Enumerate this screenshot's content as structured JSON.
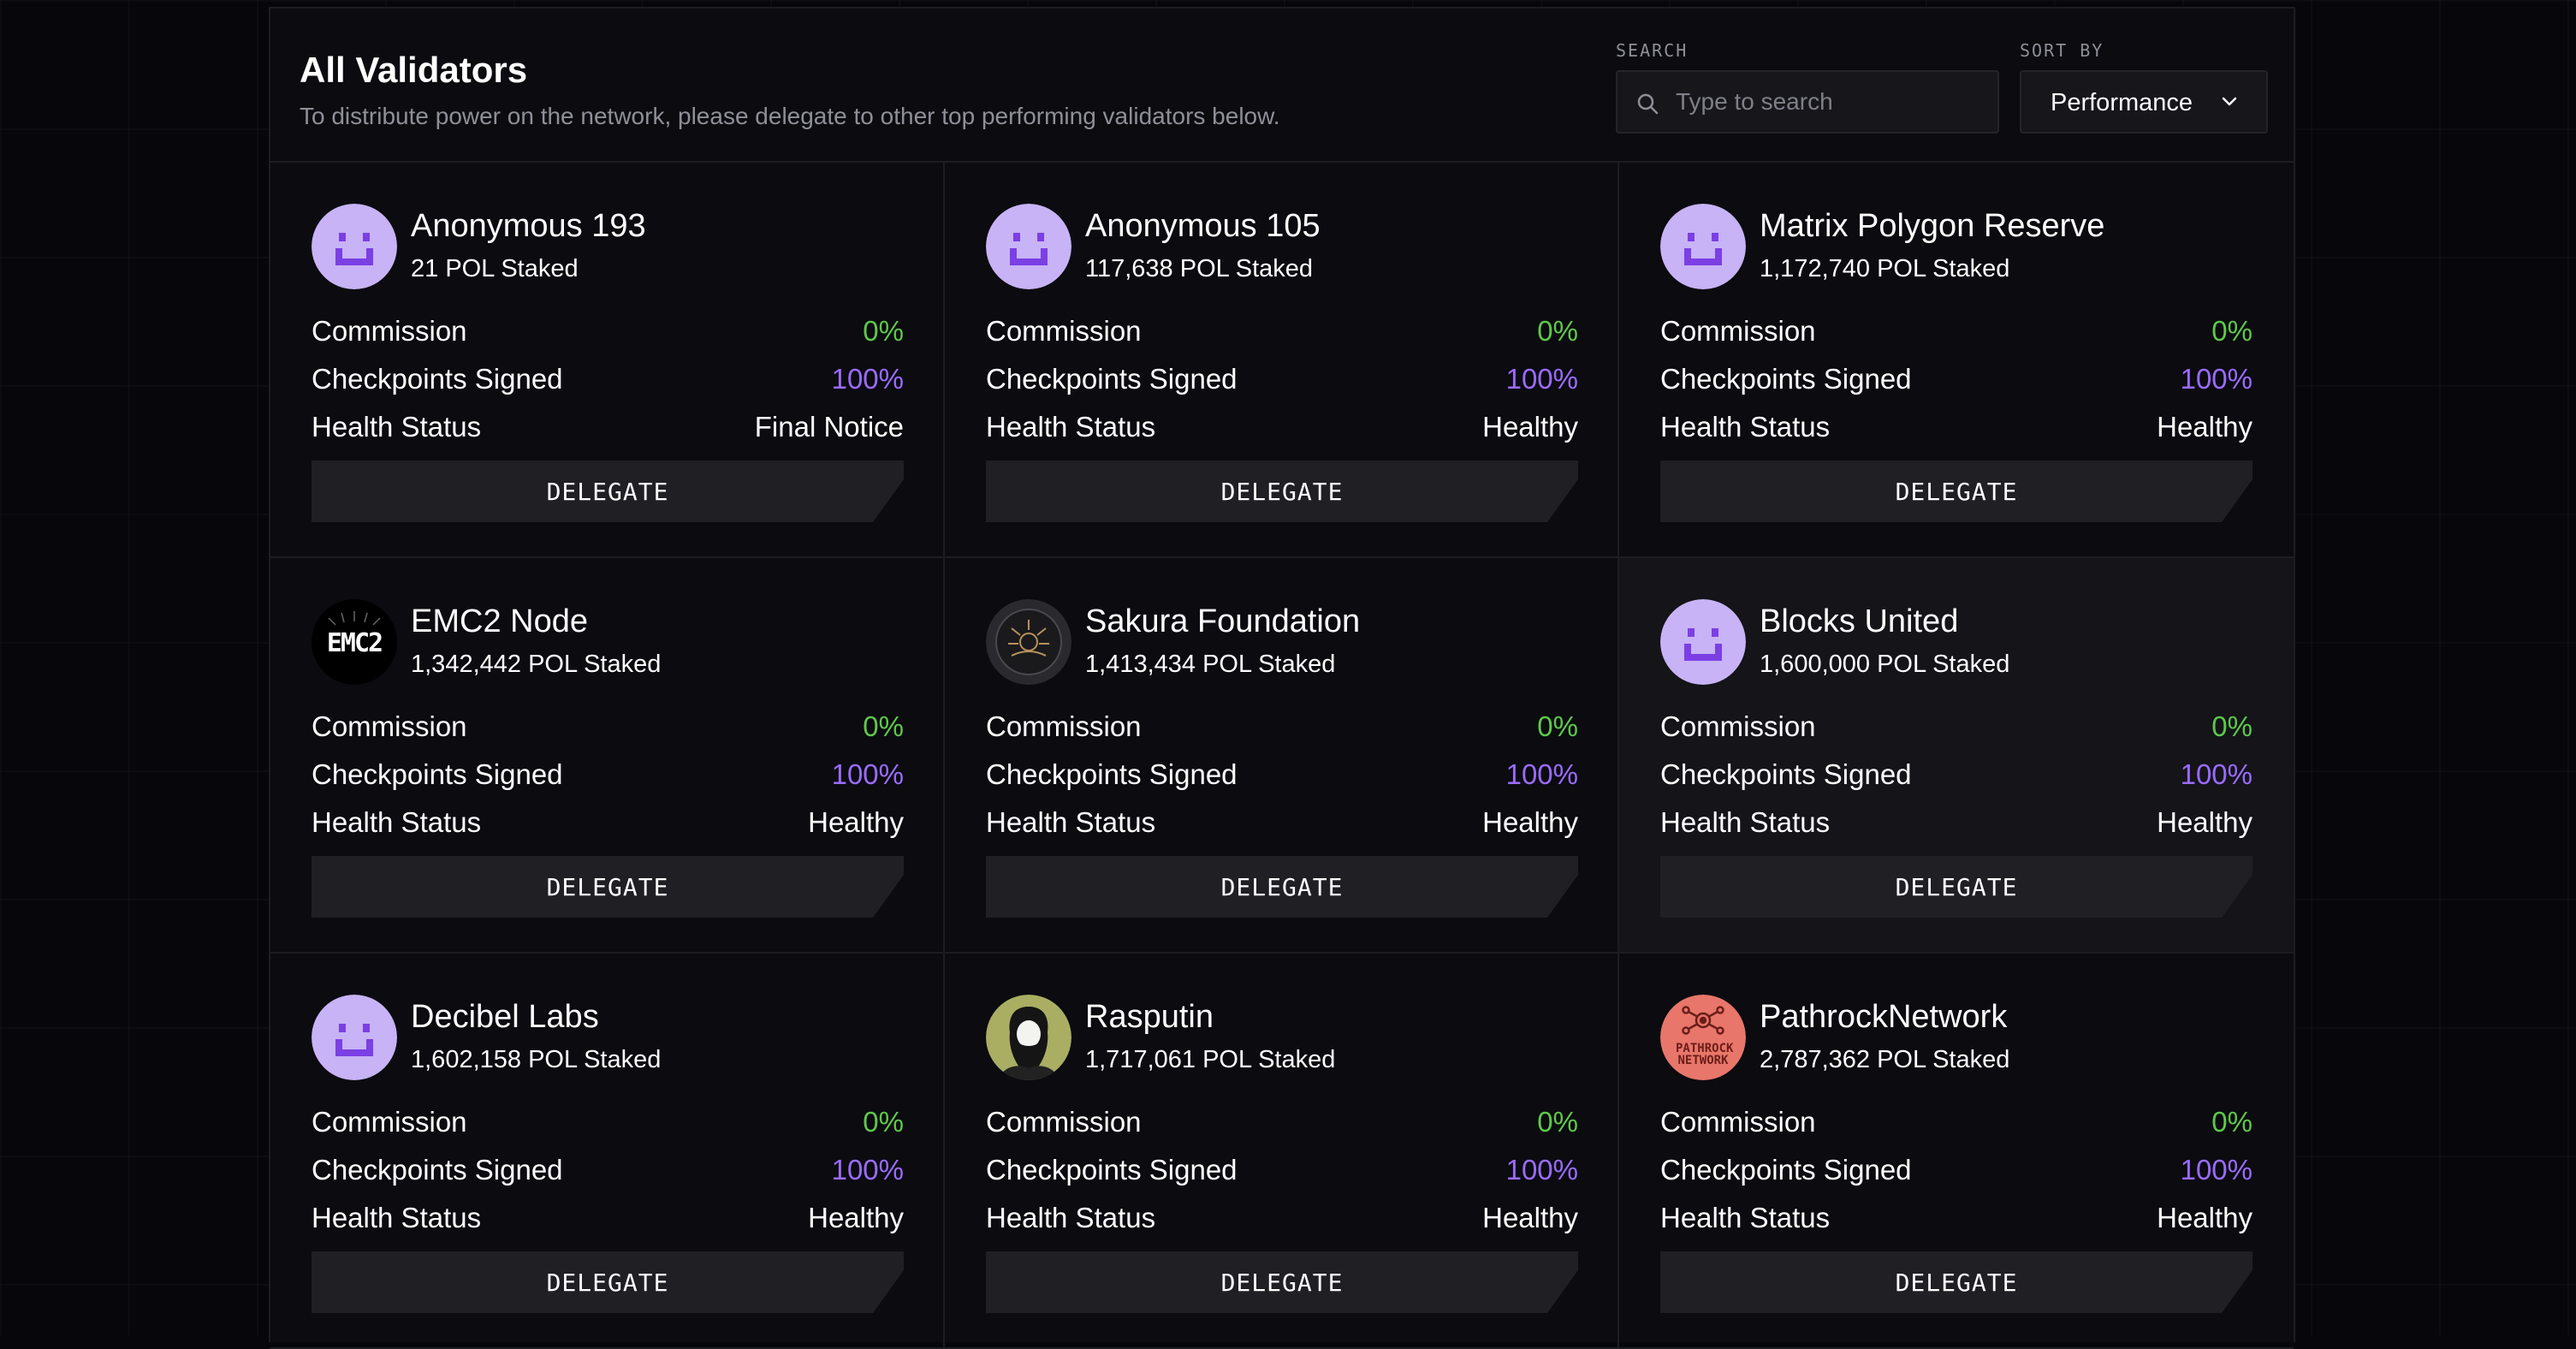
{
  "header": {
    "title": "All Validators",
    "subtitle": "To distribute power on the network, please delegate to other top performing validators below.",
    "search_label": "SEARCH",
    "search_placeholder": "Type to search",
    "sort_label": "SORT BY",
    "sort_value": "Performance"
  },
  "labels": {
    "commission": "Commission",
    "checkpoints": "Checkpoints Signed",
    "health": "Health Status",
    "delegate": "DELEGATE"
  },
  "colors": {
    "commission": "#5ec94a",
    "checkpoints": "#9b6bff",
    "avatar_default": "#c7b3f5",
    "avatar_mark": "#7b3fe4"
  },
  "validators": [
    {
      "name": "Anonymous 193",
      "staked": "21 POL Staked",
      "commission": "0%",
      "checkpoints": "100%",
      "health": "Final Notice",
      "avatar": "default-smiley-icon"
    },
    {
      "name": "Anonymous 105",
      "staked": "117,638 POL Staked",
      "commission": "0%",
      "checkpoints": "100%",
      "health": "Healthy",
      "avatar": "default-smiley-icon"
    },
    {
      "name": "Matrix Polygon Reserve",
      "staked": "1,172,740 POL Staked",
      "commission": "0%",
      "checkpoints": "100%",
      "health": "Healthy",
      "avatar": "default-smiley-icon"
    },
    {
      "name": "EMC2 Node",
      "staked": "1,342,442 POL Staked",
      "commission": "0%",
      "checkpoints": "100%",
      "health": "Healthy",
      "avatar": "emc2-logo",
      "avatar_text": "EMC2"
    },
    {
      "name": "Sakura Foundation",
      "staked": "1,413,434 POL Staked",
      "commission": "0%",
      "checkpoints": "100%",
      "health": "Healthy",
      "avatar": "sakura-logo"
    },
    {
      "name": "Blocks United",
      "staked": "1,600,000 POL Staked",
      "commission": "0%",
      "checkpoints": "100%",
      "health": "Healthy",
      "avatar": "default-smiley-icon"
    },
    {
      "name": "Decibel Labs",
      "staked": "1,602,158 POL Staked",
      "commission": "0%",
      "checkpoints": "100%",
      "health": "Healthy",
      "avatar": "default-smiley-icon"
    },
    {
      "name": "Rasputin",
      "staked": "1,717,061 POL Staked",
      "commission": "0%",
      "checkpoints": "100%",
      "health": "Healthy",
      "avatar": "rasputin-portrait"
    },
    {
      "name": "PathrockNetwork",
      "staked": "2,787,362 POL Staked",
      "commission": "0%",
      "checkpoints": "100%",
      "health": "Healthy",
      "avatar": "pathrock-logo",
      "avatar_text": "PATHROCK NETWORK"
    }
  ]
}
